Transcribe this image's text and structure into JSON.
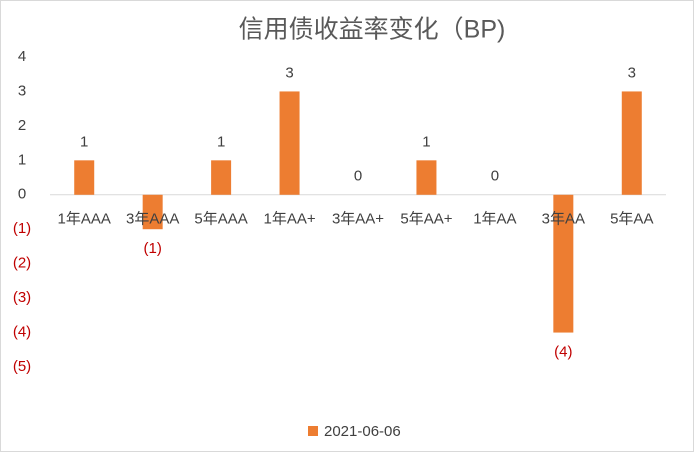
{
  "chart_data": {
    "type": "bar",
    "title": "信用债收益率变化（BP)",
    "categories": [
      "1年AAA",
      "3年AAA",
      "5年AAA",
      "1年AA+",
      "3年AA+",
      "5年AA+",
      "1年AA",
      "3年AA",
      "5年AA"
    ],
    "series": [
      {
        "name": "2021-06-06",
        "color": "#ed7d31",
        "values": [
          1,
          -1,
          1,
          3,
          0,
          1,
          0,
          -4,
          3
        ]
      }
    ],
    "value_labels": [
      "1",
      "(1)",
      "1",
      "3",
      "0",
      "1",
      "0",
      "(4)",
      "3"
    ],
    "ylim": [
      -5,
      4
    ],
    "yticks": [
      4,
      3,
      2,
      1,
      0,
      {
        "value": -1,
        "label": "(1)"
      },
      {
        "value": -2,
        "label": "(2)"
      },
      {
        "value": -3,
        "label": "(3)"
      },
      {
        "value": -4,
        "label": "(4)"
      },
      {
        "value": -5,
        "label": "(5)"
      }
    ],
    "negative_color": "#c00000",
    "grid": false,
    "legend": "bottom"
  }
}
